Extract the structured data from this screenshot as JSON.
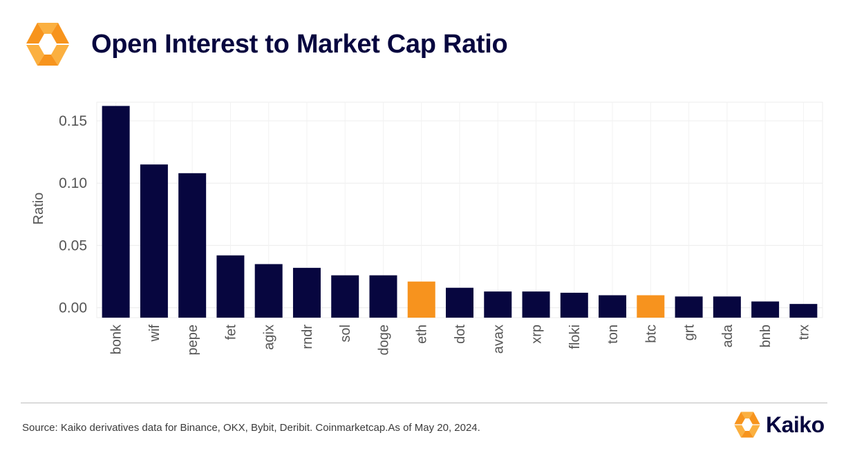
{
  "header": {
    "title": "Open Interest to Market Cap Ratio"
  },
  "footer": {
    "source": "Source: Kaiko derivatives data for Binance, OKX, Bybit, Deribit. Coinmarketcap.As of May 20, 2024.",
    "brand": "Kaiko"
  },
  "colors": {
    "primary": "#07063f",
    "highlight": "#f7931e",
    "logo_orange": "#f7941d",
    "logo_yellow": "#fbb040"
  },
  "icons": {
    "header_logo": "kaiko-logo-icon",
    "footer_logo": "kaiko-logo-icon"
  },
  "chart_data": {
    "type": "bar",
    "title": "",
    "xlabel": "",
    "ylabel": "Ratio",
    "ylim": [
      -0.008,
      0.165
    ],
    "yticks": [
      0.15,
      0.1,
      0.05,
      0.0
    ],
    "ytick_labels": [
      "0.15",
      "0.10",
      "0.05",
      "0.00"
    ],
    "grid": true,
    "categories": [
      "bonk",
      "wif",
      "pepe",
      "fet",
      "agix",
      "rndr",
      "sol",
      "doge",
      "eth",
      "dot",
      "avax",
      "xrp",
      "floki",
      "ton",
      "btc",
      "grt",
      "ada",
      "bnb",
      "trx"
    ],
    "values": [
      0.162,
      0.115,
      0.108,
      0.042,
      0.035,
      0.032,
      0.026,
      0.026,
      0.021,
      0.016,
      0.013,
      0.013,
      0.012,
      0.01,
      0.01,
      0.009,
      0.009,
      0.005,
      0.003
    ],
    "highlighted": [
      "eth",
      "btc"
    ]
  }
}
